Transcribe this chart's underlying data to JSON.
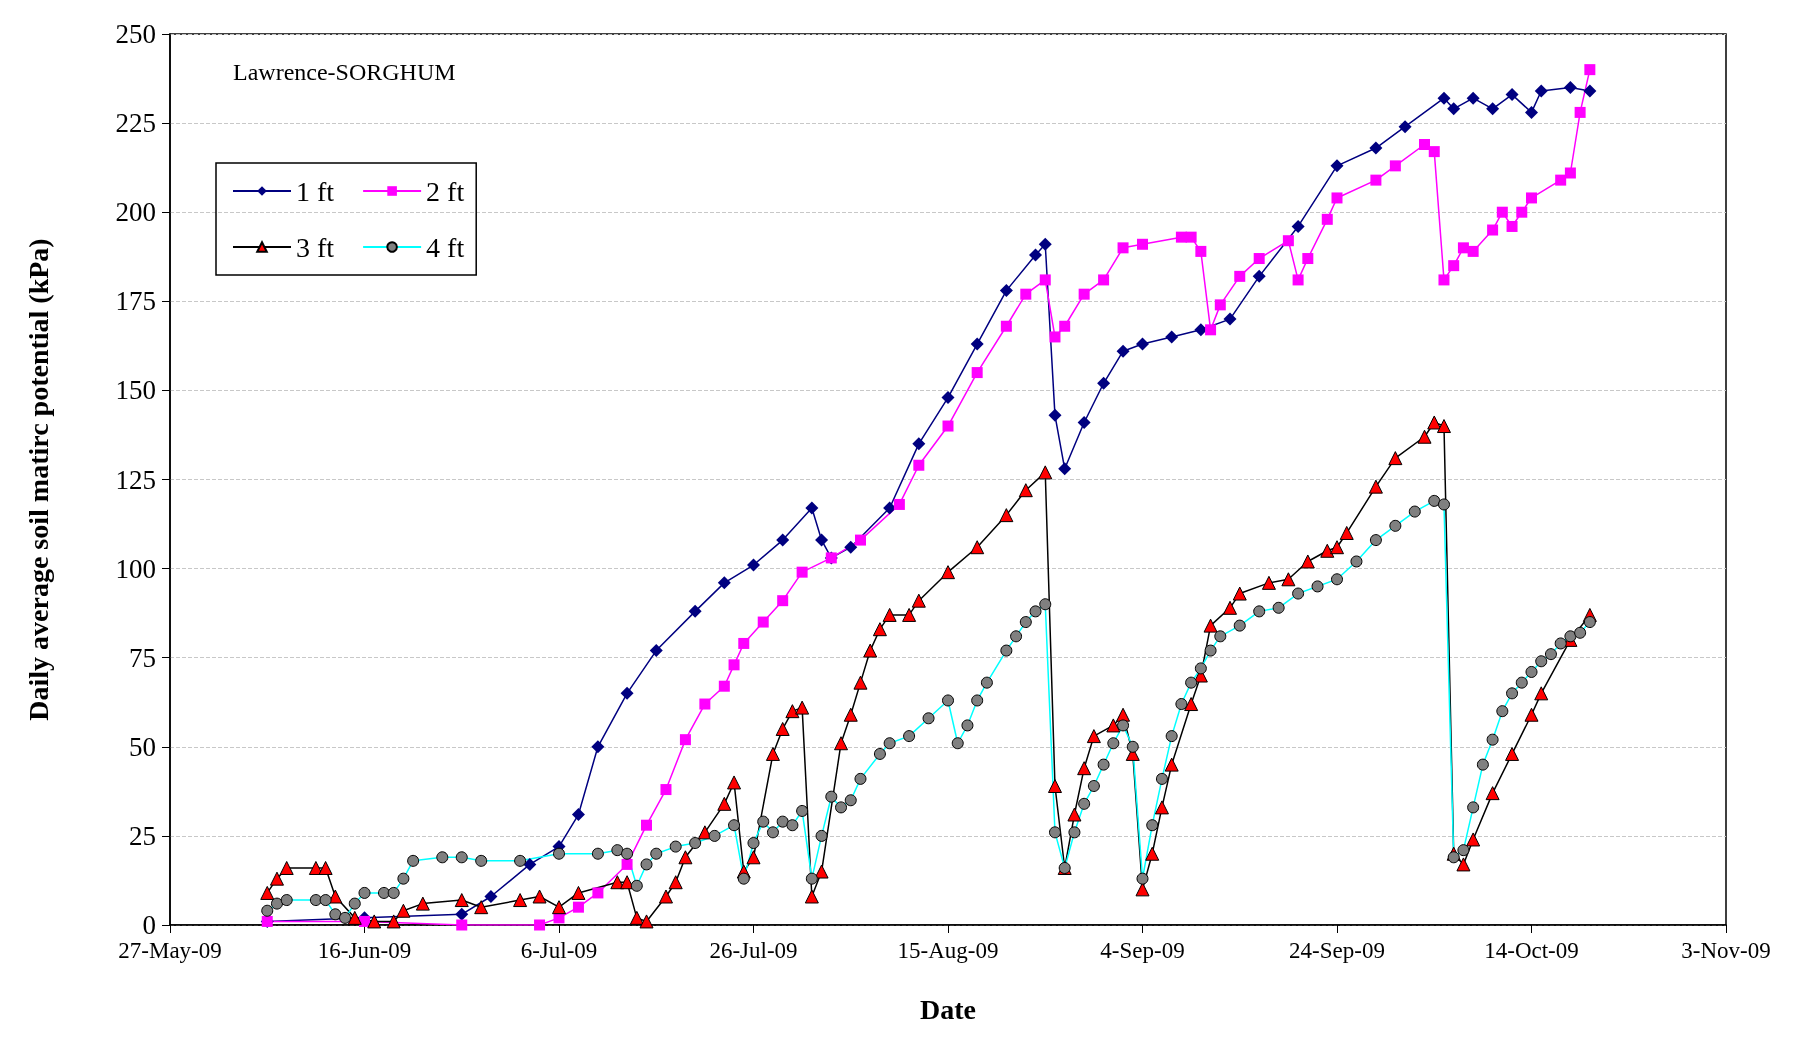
{
  "chart_data": {
    "type": "line",
    "xlabel": "Date",
    "ylabel": "Daily average soil matirc potential (kPa)",
    "annotations": [
      "Lawrence-SORGHUM"
    ],
    "xlim": [
      "2009-05-27",
      "2009-11-03"
    ],
    "xticks": [
      {
        "value": "2009-05-27",
        "label": "27-May-09"
      },
      {
        "value": "2009-06-16",
        "label": "16-Jun-09"
      },
      {
        "value": "2009-07-06",
        "label": "6-Jul-09"
      },
      {
        "value": "2009-07-26",
        "label": "26-Jul-09"
      },
      {
        "value": "2009-08-15",
        "label": "15-Aug-09"
      },
      {
        "value": "2009-09-04",
        "label": "4-Sep-09"
      },
      {
        "value": "2009-09-24",
        "label": "24-Sep-09"
      },
      {
        "value": "2009-10-14",
        "label": "14-Oct-09"
      },
      {
        "value": "2009-11-03",
        "label": "3-Nov-09"
      }
    ],
    "ylim": [
      0,
      250
    ],
    "yticks": [
      0,
      25,
      50,
      75,
      100,
      125,
      150,
      175,
      200,
      225,
      250
    ],
    "grid": "y",
    "legend": "top left",
    "line_style": "solid",
    "series": [
      {
        "name": "1 ft",
        "color": "#000080",
        "marker": "diamond",
        "x": [
          "2009-06-06",
          "2009-06-16",
          "2009-06-26",
          "2009-06-29",
          "2009-07-03",
          "2009-07-06",
          "2009-07-08",
          "2009-07-10",
          "2009-07-13",
          "2009-07-16",
          "2009-07-20",
          "2009-07-23",
          "2009-07-26",
          "2009-07-29",
          "2009-08-01",
          "2009-08-02",
          "2009-08-03",
          "2009-08-05",
          "2009-08-09",
          "2009-08-12",
          "2009-08-15",
          "2009-08-18",
          "2009-08-21",
          "2009-08-24",
          "2009-08-25",
          "2009-08-26",
          "2009-08-27",
          "2009-08-29",
          "2009-08-31",
          "2009-09-02",
          "2009-09-04",
          "2009-09-07",
          "2009-09-10",
          "2009-09-13",
          "2009-09-16",
          "2009-09-20",
          "2009-09-24",
          "2009-09-28",
          "2009-10-01",
          "2009-10-05",
          "2009-10-06",
          "2009-10-08",
          "2009-10-10",
          "2009-10-12",
          "2009-10-14",
          "2009-10-15",
          "2009-10-18",
          "2009-10-20"
        ],
        "values": [
          1,
          2,
          3,
          8,
          17,
          22,
          31,
          50,
          65,
          77,
          88,
          96,
          101,
          108,
          117,
          108,
          103,
          106,
          117,
          135,
          148,
          163,
          178,
          188,
          191,
          143,
          128,
          141,
          152,
          161,
          163,
          165,
          167,
          170,
          182,
          196,
          213,
          218,
          224,
          232,
          229,
          232,
          229,
          233,
          228,
          234,
          235,
          234
        ]
      },
      {
        "name": "2 ft",
        "color": "#ff00ff",
        "marker": "square",
        "x": [
          "2009-06-06",
          "2009-06-16",
          "2009-06-26",
          "2009-07-04",
          "2009-07-06",
          "2009-07-08",
          "2009-07-10",
          "2009-07-13",
          "2009-07-15",
          "2009-07-17",
          "2009-07-19",
          "2009-07-21",
          "2009-07-23",
          "2009-07-24",
          "2009-07-25",
          "2009-07-27",
          "2009-07-29",
          "2009-07-31",
          "2009-08-03",
          "2009-08-06",
          "2009-08-10",
          "2009-08-12",
          "2009-08-15",
          "2009-08-18",
          "2009-08-21",
          "2009-08-23",
          "2009-08-25",
          "2009-08-26",
          "2009-08-27",
          "2009-08-29",
          "2009-08-31",
          "2009-09-02",
          "2009-09-04",
          "2009-09-08",
          "2009-09-09",
          "2009-09-10",
          "2009-09-11",
          "2009-09-12",
          "2009-09-14",
          "2009-09-16",
          "2009-09-19",
          "2009-09-20",
          "2009-09-21",
          "2009-09-23",
          "2009-09-24",
          "2009-09-28",
          "2009-09-30",
          "2009-10-03",
          "2009-10-04",
          "2009-10-05",
          "2009-10-06",
          "2009-10-07",
          "2009-10-08",
          "2009-10-10",
          "2009-10-11",
          "2009-10-12",
          "2009-10-13",
          "2009-10-14",
          "2009-10-17",
          "2009-10-18",
          "2009-10-19",
          "2009-10-20"
        ],
        "values": [
          1,
          1,
          0,
          0,
          2,
          5,
          9,
          17,
          28,
          38,
          52,
          62,
          67,
          73,
          79,
          85,
          91,
          99,
          103,
          108,
          118,
          129,
          140,
          155,
          168,
          177,
          181,
          165,
          168,
          177,
          181,
          190,
          191,
          193,
          193,
          189,
          167,
          174,
          182,
          187,
          192,
          181,
          187,
          198,
          204,
          209,
          213,
          219,
          217,
          181,
          185,
          190,
          189,
          195,
          200,
          196,
          200,
          204,
          209,
          211,
          228,
          240
        ]
      },
      {
        "name": "3 ft",
        "color": "#ff0000",
        "marker": "triangle",
        "x": [
          "2009-06-06",
          "2009-06-07",
          "2009-06-08",
          "2009-06-11",
          "2009-06-12",
          "2009-06-13",
          "2009-06-15",
          "2009-06-17",
          "2009-06-19",
          "2009-06-20",
          "2009-06-22",
          "2009-06-26",
          "2009-06-28",
          "2009-07-02",
          "2009-07-04",
          "2009-07-06",
          "2009-07-08",
          "2009-07-12",
          "2009-07-13",
          "2009-07-14",
          "2009-07-15",
          "2009-07-17",
          "2009-07-18",
          "2009-07-19",
          "2009-07-21",
          "2009-07-23",
          "2009-07-24",
          "2009-07-25",
          "2009-07-26",
          "2009-07-28",
          "2009-07-29",
          "2009-07-30",
          "2009-07-31",
          "2009-08-01",
          "2009-08-02",
          "2009-08-04",
          "2009-08-05",
          "2009-08-06",
          "2009-08-07",
          "2009-08-08",
          "2009-08-09",
          "2009-08-11",
          "2009-08-12",
          "2009-08-15",
          "2009-08-18",
          "2009-08-21",
          "2009-08-23",
          "2009-08-25",
          "2009-08-26",
          "2009-08-27",
          "2009-08-28",
          "2009-08-29",
          "2009-08-30",
          "2009-09-01",
          "2009-09-02",
          "2009-09-03",
          "2009-09-04",
          "2009-09-05",
          "2009-09-06",
          "2009-09-07",
          "2009-09-09",
          "2009-09-10",
          "2009-09-11",
          "2009-09-13",
          "2009-09-14",
          "2009-09-17",
          "2009-09-19",
          "2009-09-21",
          "2009-09-23",
          "2009-09-24",
          "2009-09-25",
          "2009-09-28",
          "2009-09-30",
          "2009-10-03",
          "2009-10-04",
          "2009-10-05",
          "2009-10-06",
          "2009-10-07",
          "2009-10-08",
          "2009-10-10",
          "2009-10-12",
          "2009-10-14",
          "2009-10-15",
          "2009-10-18",
          "2009-10-20"
        ],
        "values": [
          9,
          13,
          16,
          16,
          16,
          8,
          2,
          1,
          1,
          4,
          6,
          7,
          5,
          7,
          8,
          5,
          9,
          12,
          12,
          2,
          1,
          8,
          12,
          19,
          26,
          34,
          40,
          15,
          19,
          48,
          55,
          60,
          61,
          8,
          15,
          51,
          59,
          68,
          77,
          83,
          87,
          87,
          91,
          99,
          106,
          115,
          122,
          127,
          39,
          16,
          31,
          44,
          53,
          56,
          59,
          48,
          10,
          20,
          33,
          45,
          62,
          70,
          84,
          89,
          93,
          96,
          97,
          102,
          105,
          106,
          110,
          123,
          131,
          137,
          141,
          140,
          20,
          17,
          24,
          37,
          48,
          59,
          65,
          80,
          87
        ]
      },
      {
        "name": "4 ft",
        "color": "#808080",
        "marker": "circle",
        "x": [
          "2009-06-06",
          "2009-06-07",
          "2009-06-08",
          "2009-06-11",
          "2009-06-12",
          "2009-06-13",
          "2009-06-14",
          "2009-06-15",
          "2009-06-16",
          "2009-06-18",
          "2009-06-19",
          "2009-06-20",
          "2009-06-21",
          "2009-06-24",
          "2009-06-26",
          "2009-06-28",
          "2009-07-02",
          "2009-07-06",
          "2009-07-10",
          "2009-07-12",
          "2009-07-13",
          "2009-07-14",
          "2009-07-15",
          "2009-07-16",
          "2009-07-18",
          "2009-07-20",
          "2009-07-22",
          "2009-07-24",
          "2009-07-25",
          "2009-07-26",
          "2009-07-27",
          "2009-07-28",
          "2009-07-29",
          "2009-07-30",
          "2009-07-31",
          "2009-08-01",
          "2009-08-02",
          "2009-08-03",
          "2009-08-04",
          "2009-08-05",
          "2009-08-06",
          "2009-08-08",
          "2009-08-09",
          "2009-08-11",
          "2009-08-13",
          "2009-08-15",
          "2009-08-16",
          "2009-08-17",
          "2009-08-18",
          "2009-08-19",
          "2009-08-21",
          "2009-08-22",
          "2009-08-23",
          "2009-08-24",
          "2009-08-25",
          "2009-08-26",
          "2009-08-27",
          "2009-08-28",
          "2009-08-29",
          "2009-08-30",
          "2009-08-31",
          "2009-09-01",
          "2009-09-02",
          "2009-09-03",
          "2009-09-04",
          "2009-09-05",
          "2009-09-06",
          "2009-09-07",
          "2009-09-08",
          "2009-09-09",
          "2009-09-10",
          "2009-09-11",
          "2009-09-12",
          "2009-09-14",
          "2009-09-16",
          "2009-09-18",
          "2009-09-20",
          "2009-09-22",
          "2009-09-24",
          "2009-09-26",
          "2009-09-28",
          "2009-09-30",
          "2009-10-02",
          "2009-10-04",
          "2009-10-05",
          "2009-10-06",
          "2009-10-07",
          "2009-10-08",
          "2009-10-09",
          "2009-10-10",
          "2009-10-11",
          "2009-10-12",
          "2009-10-13",
          "2009-10-14",
          "2009-10-15",
          "2009-10-16",
          "2009-10-17",
          "2009-10-18",
          "2009-10-19",
          "2009-10-20"
        ],
        "values": [
          4,
          6,
          7,
          7,
          7,
          3,
          2,
          6,
          9,
          9,
          9,
          13,
          18,
          19,
          19,
          18,
          18,
          20,
          20,
          21,
          20,
          11,
          17,
          20,
          22,
          23,
          25,
          28,
          13,
          23,
          29,
          26,
          29,
          28,
          32,
          13,
          25,
          36,
          33,
          35,
          41,
          48,
          51,
          53,
          58,
          63,
          51,
          56,
          63,
          68,
          77,
          81,
          85,
          88,
          90,
          26,
          16,
          26,
          34,
          39,
          45,
          51,
          56,
          50,
          13,
          28,
          41,
          53,
          62,
          68,
          72,
          77,
          81,
          84,
          88,
          89,
          93,
          95,
          97,
          102,
          108,
          112,
          116,
          119,
          118,
          19,
          21,
          33,
          45,
          52,
          60,
          65,
          68,
          71,
          74,
          76,
          79,
          81,
          82,
          85
        ]
      }
    ]
  }
}
